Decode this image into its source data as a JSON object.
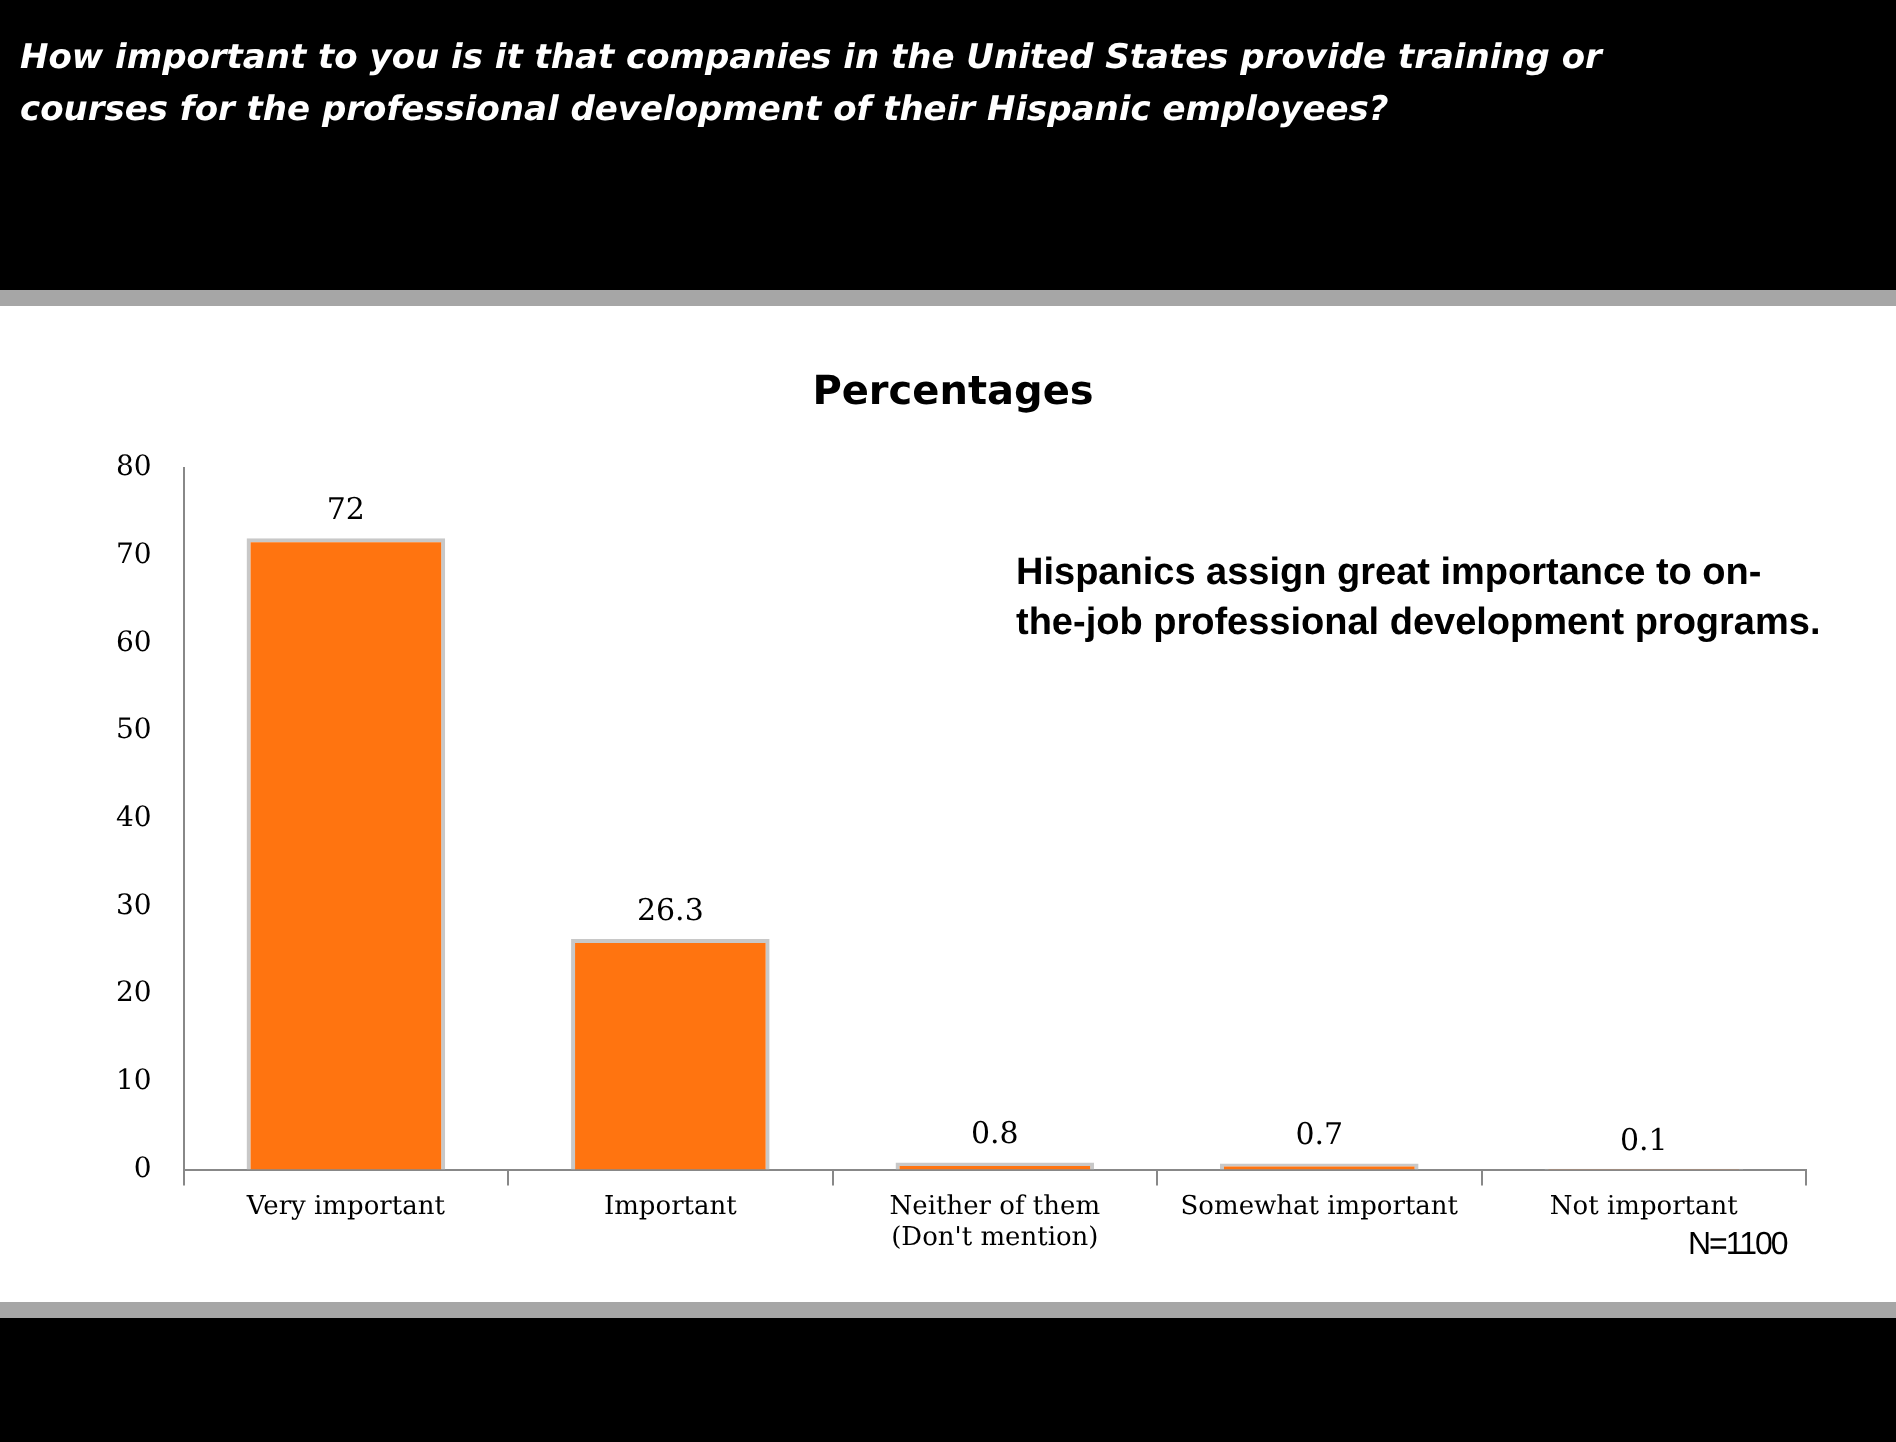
{
  "chart_data": {
    "type": "bar",
    "title": "How important to you is it that companies in the United States provide training or courses for the professional development of their Hispanic employees?",
    "subtitle": "Percentages",
    "categories": [
      "Very important",
      "Important",
      "Neither of them\n(Don't mention)",
      "Somewhat important",
      "Not important"
    ],
    "values": [
      72,
      26.3,
      0.8,
      0.7,
      0.1
    ],
    "color": "#ff7410",
    "ylim": [
      0,
      80
    ],
    "yticks": [
      0,
      10,
      20,
      30,
      40,
      50,
      60,
      70,
      80
    ],
    "grid": false,
    "legend": false,
    "data_labels": true,
    "annotations": [
      "Hispanics assign great importance to on-the-job professional development programs.",
      "N=1100"
    ]
  }
}
